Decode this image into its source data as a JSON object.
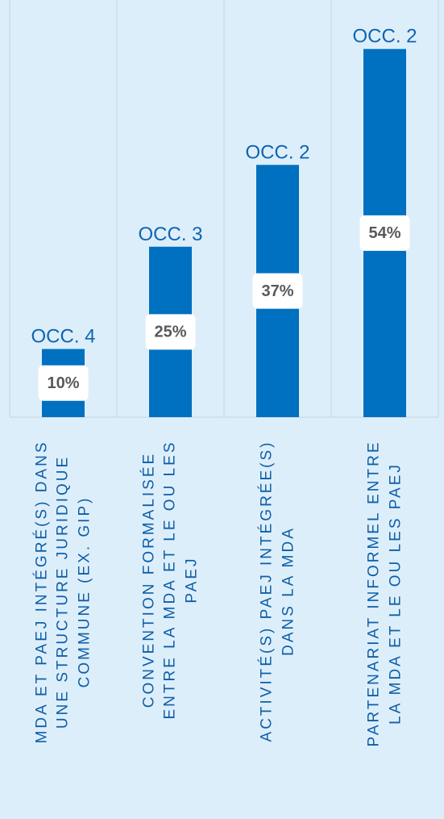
{
  "chart_data": {
    "type": "bar",
    "categories": [
      "MDA ET PAEJ INTÉGRÉ(S) DANS\nUNE STRUCTURE JURIDIQUE\nCOMMUNE (EX. GIP)",
      "CONVENTION FORMALISÉE\nENTRE LA MDA ET LE OU LES\nPAEJ",
      "ACTIVITÉ(S) PAEJ INTÉGRÉE(S)\nDANS LA MDA",
      "PARTENARIAT INFORMEL ENTRE\nLA MDA ET LE OU LES PAEJ"
    ],
    "values": [
      10,
      25,
      37,
      54
    ],
    "value_labels": [
      "10%",
      "25%",
      "37%",
      "54%"
    ],
    "annotations": [
      "OCC. 4",
      "OCC. 3",
      "OCC. 2",
      "OCC. 2"
    ],
    "color": "#0070c0",
    "ylim": [
      0,
      60
    ],
    "grid": true
  }
}
